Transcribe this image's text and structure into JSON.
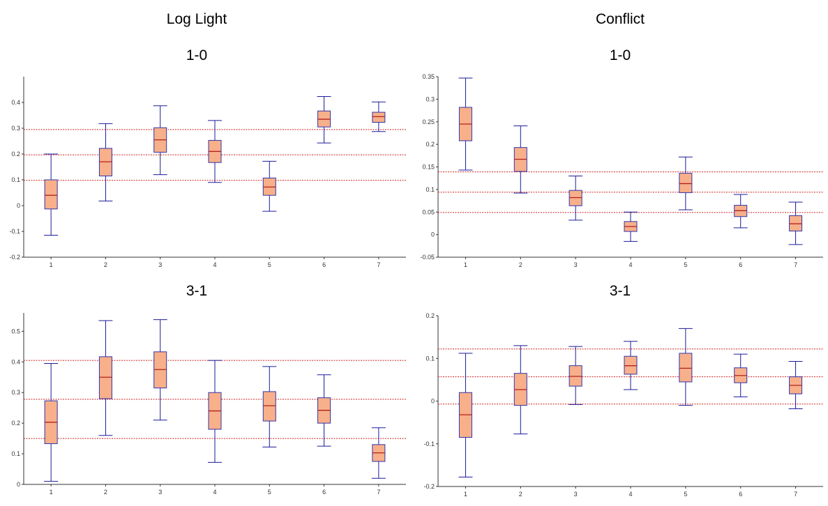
{
  "columns": [
    {
      "title": "Log Light"
    },
    {
      "title": "Conflict"
    }
  ],
  "colors": {
    "box_fill": "#f7b08a",
    "box_edge": "#3333aa",
    "whisker": "#1a1a99",
    "median": "#b22222",
    "reference_line": "#cc2222",
    "axis": "#333333"
  },
  "chart_data": [
    {
      "type": "box",
      "column": "Log Light",
      "title": "1-0",
      "categories": [
        "1",
        "2",
        "3",
        "4",
        "5",
        "6",
        "7"
      ],
      "ylim": [
        -0.2,
        0.5
      ],
      "yticks": [
        -0.2,
        -0.1,
        0,
        0.1,
        0.2,
        0.3,
        0.4
      ],
      "yticklabels": [
        "-0.2",
        "-0.1",
        "0",
        "0.1",
        "0.2",
        "0.3",
        "0.4"
      ],
      "boxes": [
        {
          "min": -0.115,
          "q1": -0.013,
          "median": 0.04,
          "q3": 0.1,
          "max": 0.2
        },
        {
          "min": 0.018,
          "q1": 0.115,
          "median": 0.17,
          "q3": 0.222,
          "max": 0.318
        },
        {
          "min": 0.12,
          "q1": 0.207,
          "median": 0.255,
          "q3": 0.302,
          "max": 0.387
        },
        {
          "min": 0.09,
          "q1": 0.167,
          "median": 0.21,
          "q3": 0.253,
          "max": 0.33
        },
        {
          "min": -0.022,
          "q1": 0.04,
          "median": 0.072,
          "q3": 0.107,
          "max": 0.172
        },
        {
          "min": 0.243,
          "q1": 0.305,
          "median": 0.335,
          "q3": 0.367,
          "max": 0.423
        },
        {
          "min": 0.287,
          "q1": 0.323,
          "median": 0.345,
          "q3": 0.362,
          "max": 0.402
        }
      ],
      "reference_lines": [
        0.295,
        0.197,
        0.098
      ]
    },
    {
      "type": "box",
      "column": "Conflict",
      "title": "1-0",
      "categories": [
        "1",
        "2",
        "3",
        "4",
        "5",
        "6",
        "7"
      ],
      "ylim": [
        -0.05,
        0.35
      ],
      "yticks": [
        -0.05,
        0,
        0.05,
        0.1,
        0.15,
        0.2,
        0.25,
        0.3,
        0.35
      ],
      "yticklabels": [
        "-0.05",
        "0",
        "0.05",
        "0.1",
        "0.15",
        "0.2",
        "0.25",
        "0.3",
        "0.35"
      ],
      "boxes": [
        {
          "min": 0.143,
          "q1": 0.208,
          "median": 0.245,
          "q3": 0.282,
          "max": 0.347
        },
        {
          "min": 0.092,
          "q1": 0.14,
          "median": 0.167,
          "q3": 0.193,
          "max": 0.241
        },
        {
          "min": 0.032,
          "q1": 0.064,
          "median": 0.082,
          "q3": 0.098,
          "max": 0.13
        },
        {
          "min": -0.015,
          "q1": 0.007,
          "median": 0.018,
          "q3": 0.029,
          "max": 0.05
        },
        {
          "min": 0.055,
          "q1": 0.093,
          "median": 0.113,
          "q3": 0.136,
          "max": 0.172
        },
        {
          "min": 0.015,
          "q1": 0.04,
          "median": 0.053,
          "q3": 0.065,
          "max": 0.089
        },
        {
          "min": -0.022,
          "q1": 0.008,
          "median": 0.024,
          "q3": 0.042,
          "max": 0.072
        }
      ],
      "reference_lines": [
        0.139,
        0.094,
        0.049
      ]
    },
    {
      "type": "box",
      "column": "Log Light",
      "title": "3-1",
      "categories": [
        "1",
        "2",
        "3",
        "4",
        "5",
        "6",
        "7"
      ],
      "ylim": [
        0,
        0.56
      ],
      "yticks": [
        0,
        0.1,
        0.2,
        0.3,
        0.4,
        0.5
      ],
      "yticklabels": [
        "0",
        "0.1",
        "0.2",
        "0.3",
        "0.4",
        "0.5"
      ],
      "boxes": [
        {
          "min": 0.01,
          "q1": 0.133,
          "median": 0.203,
          "q3": 0.273,
          "max": 0.395
        },
        {
          "min": 0.16,
          "q1": 0.28,
          "median": 0.35,
          "q3": 0.417,
          "max": 0.535
        },
        {
          "min": 0.21,
          "q1": 0.315,
          "median": 0.375,
          "q3": 0.433,
          "max": 0.538
        },
        {
          "min": 0.072,
          "q1": 0.18,
          "median": 0.24,
          "q3": 0.3,
          "max": 0.405
        },
        {
          "min": 0.122,
          "q1": 0.207,
          "median": 0.257,
          "q3": 0.303,
          "max": 0.385
        },
        {
          "min": 0.125,
          "q1": 0.2,
          "median": 0.242,
          "q3": 0.283,
          "max": 0.358
        },
        {
          "min": 0.02,
          "q1": 0.075,
          "median": 0.103,
          "q3": 0.13,
          "max": 0.185
        }
      ],
      "reference_lines": [
        0.405,
        0.278,
        0.15
      ]
    },
    {
      "type": "box",
      "column": "Conflict",
      "title": "3-1",
      "categories": [
        "1",
        "2",
        "3",
        "4",
        "5",
        "6",
        "7"
      ],
      "ylim": [
        -0.2,
        0.2
      ],
      "yticks": [
        -0.2,
        -0.1,
        0,
        0.1,
        0.2
      ],
      "yticklabels": [
        "-0.2",
        "-0.1",
        "0",
        "0.1",
        "0.2"
      ],
      "boxes": [
        {
          "min": -0.178,
          "q1": -0.085,
          "median": -0.032,
          "q3": 0.02,
          "max": 0.112
        },
        {
          "min": -0.077,
          "q1": -0.01,
          "median": 0.027,
          "q3": 0.065,
          "max": 0.13
        },
        {
          "min": -0.008,
          "q1": 0.035,
          "median": 0.058,
          "q3": 0.083,
          "max": 0.128
        },
        {
          "min": 0.027,
          "q1": 0.063,
          "median": 0.083,
          "q3": 0.105,
          "max": 0.14
        },
        {
          "min": -0.01,
          "q1": 0.045,
          "median": 0.077,
          "q3": 0.112,
          "max": 0.17
        },
        {
          "min": 0.01,
          "q1": 0.043,
          "median": 0.06,
          "q3": 0.078,
          "max": 0.11
        },
        {
          "min": -0.018,
          "q1": 0.017,
          "median": 0.037,
          "q3": 0.057,
          "max": 0.093
        }
      ],
      "reference_lines": [
        0.122,
        0.057,
        -0.007
      ]
    }
  ]
}
